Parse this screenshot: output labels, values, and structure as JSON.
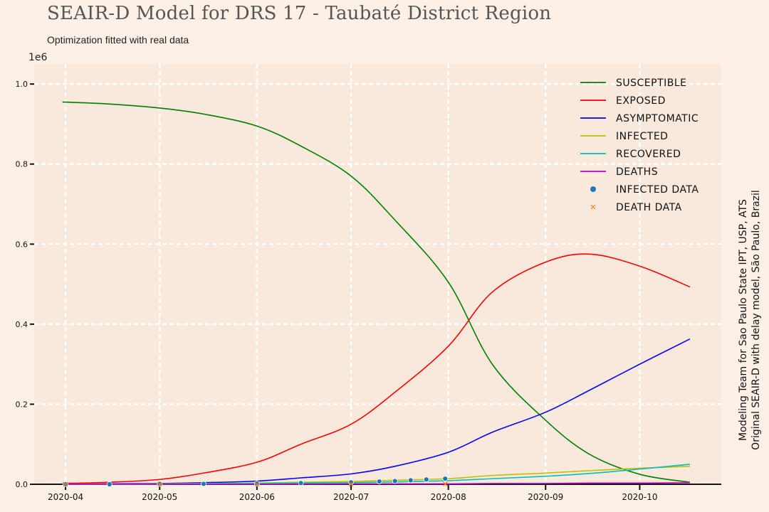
{
  "chart_data": {
    "type": "line",
    "title": "SEAIR-D Model for DRS 17 - Taubaté District Region",
    "subtitle": "Optimization fitted with real data",
    "side_note": [
      "Modeling Team for Sao Paulo State IPT, USP, ATS",
      "Original SEAIR-D with delay model, São Paulo, Brazil"
    ],
    "y_multiplier_label": "1e6",
    "ylim": [
      0,
      1.05
    ],
    "y_ticks": [
      0.0,
      0.2,
      0.4,
      0.6,
      0.8,
      1.0
    ],
    "y_tick_labels": [
      "0.0",
      "0.2",
      "0.4",
      "0.6",
      "0.8",
      "1.0"
    ],
    "x_ticks": [
      "2020-04-01",
      "2020-05-01",
      "2020-06-01",
      "2020-07-01",
      "2020-08-01",
      "2020-09-01",
      "2020-10-01"
    ],
    "x_tick_labels": [
      "2020-04",
      "2020-05",
      "2020-06",
      "2020-07",
      "2020-08",
      "2020-09",
      "2020-10"
    ],
    "xlim": [
      "2020-03-22",
      "2020-10-27"
    ],
    "grid": true,
    "legend_position": "top-right",
    "x": [
      "2020-03-31",
      "2020-04-15",
      "2020-05-01",
      "2020-05-15",
      "2020-06-01",
      "2020-06-15",
      "2020-07-01",
      "2020-07-15",
      "2020-08-01",
      "2020-08-15",
      "2020-09-01",
      "2020-09-15",
      "2020-10-01",
      "2020-10-17"
    ],
    "series": [
      {
        "name": "SUSCEPTIBLE",
        "color": "#008000",
        "values": [
          0.955,
          0.95,
          0.94,
          0.925,
          0.895,
          0.845,
          0.77,
          0.66,
          0.505,
          0.3,
          0.16,
          0.075,
          0.025,
          0.005
        ]
      },
      {
        "name": "EXPOSED",
        "color": "#ff0000",
        "values": [
          0.002,
          0.005,
          0.012,
          0.028,
          0.055,
          0.1,
          0.15,
          0.23,
          0.345,
          0.48,
          0.555,
          0.575,
          0.545,
          0.493
        ]
      },
      {
        "name": "ASYMPTOMATIC",
        "color": "#0000ff",
        "values": [
          0.0,
          0.001,
          0.002,
          0.004,
          0.008,
          0.016,
          0.026,
          0.045,
          0.08,
          0.13,
          0.18,
          0.235,
          0.3,
          0.363
        ]
      },
      {
        "name": "INFECTED",
        "color": "#bfbf00",
        "values": [
          0.0,
          0.0,
          0.001,
          0.002,
          0.003,
          0.005,
          0.007,
          0.01,
          0.014,
          0.022,
          0.028,
          0.034,
          0.04,
          0.045
        ]
      },
      {
        "name": "RECOVERED",
        "color": "#00bfbf",
        "values": [
          0.0,
          0.0,
          0.0,
          0.001,
          0.002,
          0.003,
          0.004,
          0.006,
          0.009,
          0.014,
          0.02,
          0.027,
          0.038,
          0.05
        ]
      },
      {
        "name": "DEATHS",
        "color": "#bf00bf",
        "values": [
          0.0,
          0.0,
          0.0,
          0.0,
          0.0,
          0.0,
          0.001,
          0.001,
          0.001,
          0.002,
          0.002,
          0.003,
          0.003,
          0.004
        ]
      }
    ],
    "scatter_series": [
      {
        "name": "INFECTED DATA",
        "color": "#1f77b4",
        "marker": "circle",
        "x": [
          "2020-04-01",
          "2020-04-15",
          "2020-05-01",
          "2020-05-15",
          "2020-06-01",
          "2020-06-15",
          "2020-07-01",
          "2020-07-10",
          "2020-07-15",
          "2020-07-20",
          "2020-07-25",
          "2020-07-31"
        ],
        "values": [
          0.0,
          0.0,
          0.001,
          0.001,
          0.002,
          0.003,
          0.005,
          0.007,
          0.008,
          0.01,
          0.012,
          0.014
        ]
      },
      {
        "name": "DEATH DATA",
        "color": "#ff7f0e",
        "marker": "x",
        "x": [
          "2020-04-01",
          "2020-05-01",
          "2020-06-01",
          "2020-07-01",
          "2020-07-31"
        ],
        "values": [
          0.0,
          0.0,
          0.0,
          0.0,
          0.001
        ]
      }
    ]
  }
}
